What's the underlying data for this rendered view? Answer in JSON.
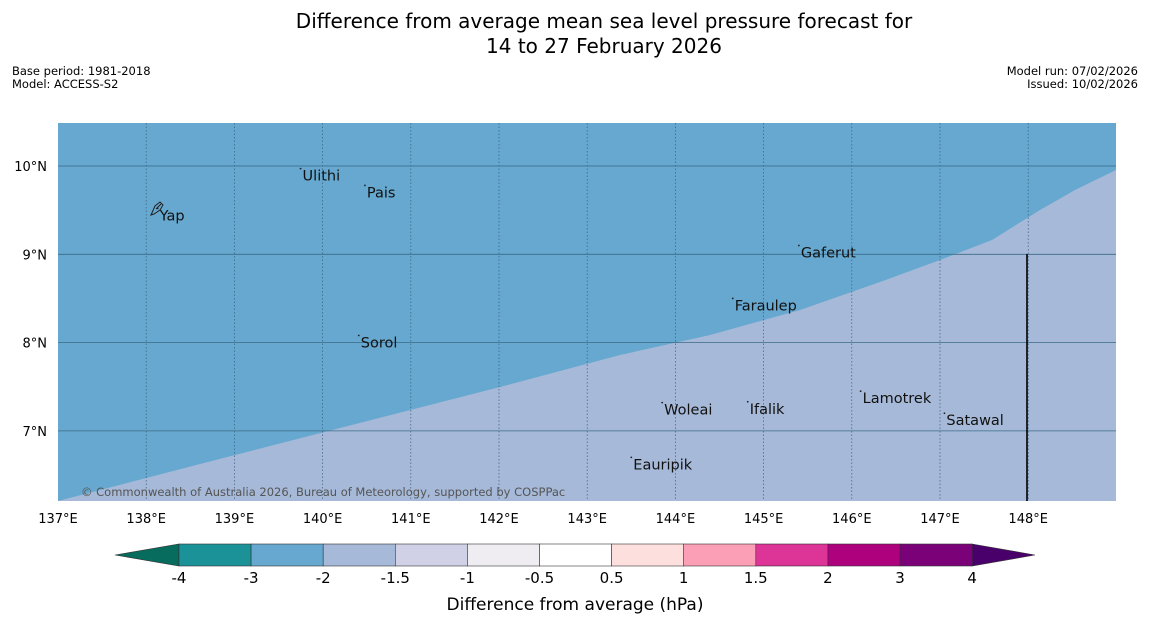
{
  "header": {
    "title_line1": "Difference from average mean sea level pressure forecast for",
    "title_line2": "14 to 27 February 2026",
    "base_period": "Base period: 1981-2018",
    "model": "Model: ACCESS-S2",
    "model_run": "Model run: 07/02/2026",
    "issued": "Issued: 10/02/2026"
  },
  "map": {
    "lon_ticks": [
      "137°E",
      "138°E",
      "139°E",
      "140°E",
      "141°E",
      "142°E",
      "143°E",
      "144°E",
      "145°E",
      "146°E",
      "147°E",
      "148°E"
    ],
    "lat_ticks": [
      "10°N",
      "9°N",
      "8°N",
      "7°N"
    ],
    "places": [
      {
        "name": "Yap",
        "lon": 138.13,
        "lat": 9.52
      },
      {
        "name": "Ulithi",
        "lon": 139.75,
        "lat": 9.97
      },
      {
        "name": "Pais",
        "lon": 140.48,
        "lat": 9.78
      },
      {
        "name": "Gaferut",
        "lon": 145.4,
        "lat": 9.1
      },
      {
        "name": "Faraulep",
        "lon": 144.65,
        "lat": 8.5
      },
      {
        "name": "Sorol",
        "lon": 140.41,
        "lat": 8.08
      },
      {
        "name": "Lamotrek",
        "lon": 146.1,
        "lat": 7.45
      },
      {
        "name": "Woleai",
        "lon": 143.85,
        "lat": 7.32
      },
      {
        "name": "Ifalik",
        "lon": 144.82,
        "lat": 7.33
      },
      {
        "name": "Satawal",
        "lon": 147.05,
        "lat": 7.2
      },
      {
        "name": "Eauripik",
        "lon": 143.5,
        "lat": 6.7
      }
    ],
    "copyright": "© Commonwealth of Australia 2026, Bureau of Meteorology, supported by COSPPac",
    "background_class_color": "#a6b9d8",
    "region_color": "#66a8cf",
    "region_class": "-3 to -2"
  },
  "legend": {
    "title": "Difference from average (hPa)",
    "tick_labels": [
      "-4",
      "-3",
      "-2",
      "-1.5",
      "-1",
      "-0.5",
      "0.5",
      "1",
      "1.5",
      "2",
      "3",
      "4"
    ],
    "colors": [
      "#076b5d",
      "#1b9297",
      "#66a8cf",
      "#a6b9d8",
      "#d0d1e6",
      "#f0edf2",
      "#ffffff",
      "#fde0dd",
      "#fa9fb5",
      "#dd3497",
      "#ae017e",
      "#7a0177",
      "#49006a"
    ]
  }
}
